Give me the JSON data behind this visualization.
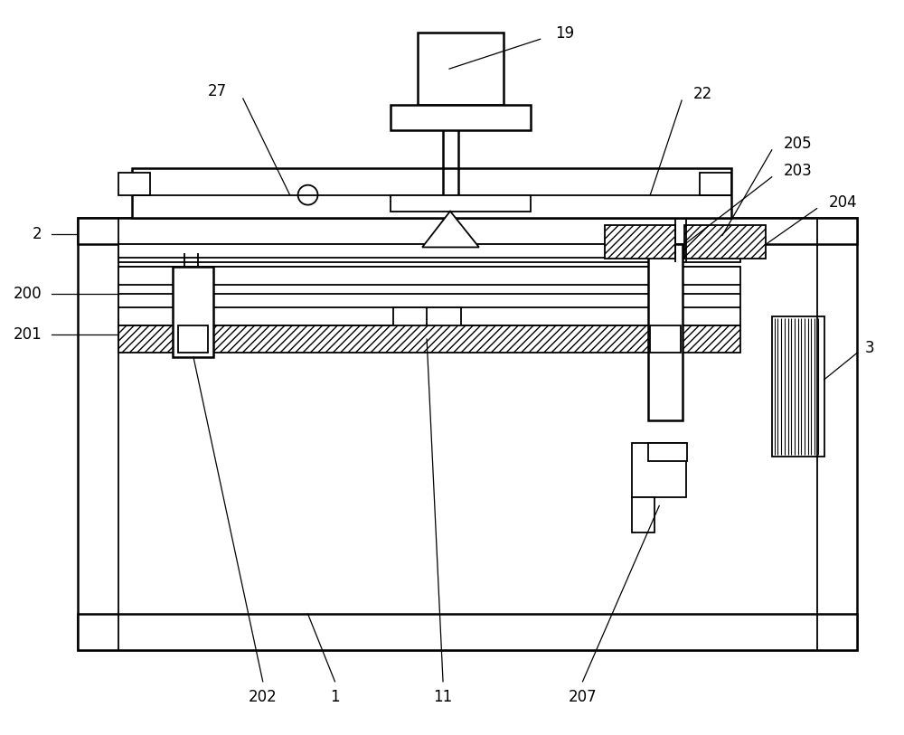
{
  "bg_color": "#ffffff",
  "fig_width": 10.0,
  "fig_height": 8.13,
  "label_fontsize": 12
}
